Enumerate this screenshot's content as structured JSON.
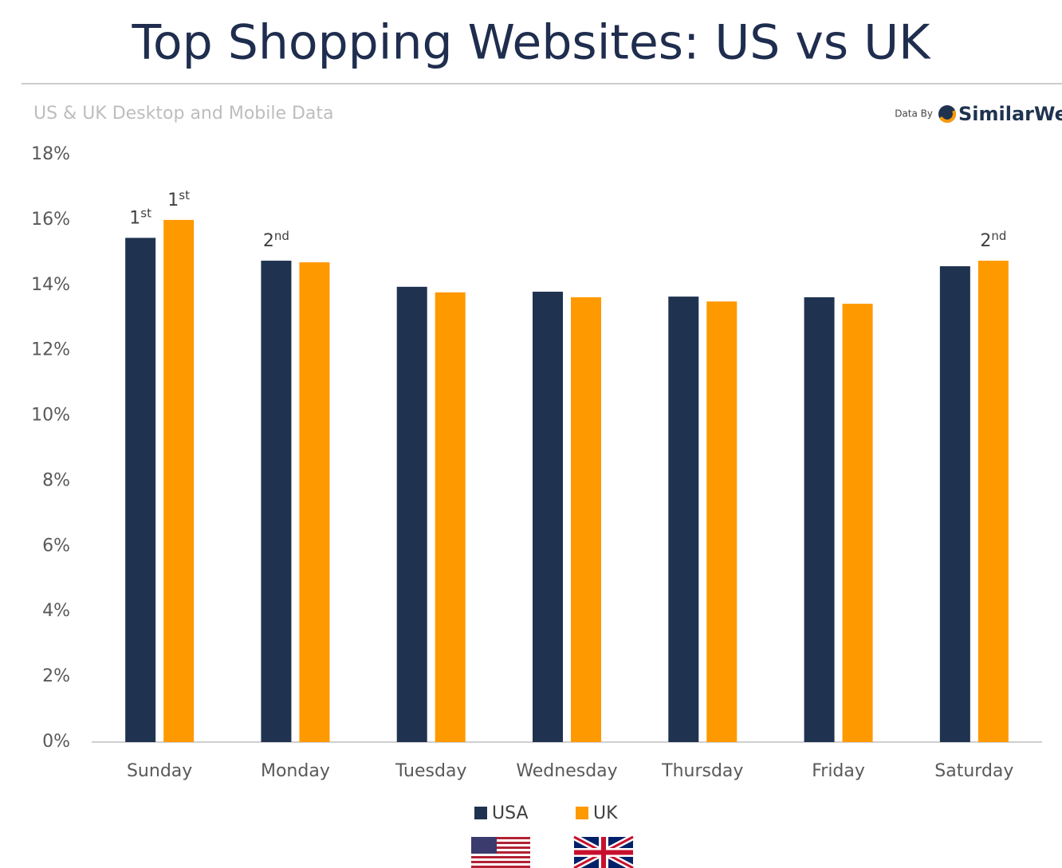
{
  "chart_data": {
    "type": "bar",
    "title": "Top Shopping Websites: US vs UK",
    "subtitle": "US & UK Desktop and Mobile Data",
    "source": "Data By",
    "brand": "SimilarWeb",
    "categories": [
      "Sunday",
      "Monday",
      "Tuesday",
      "Wednesday",
      "Thursday",
      "Friday",
      "Saturday"
    ],
    "series": [
      {
        "name": "USA",
        "color": "#1f3350",
        "values": [
          15.45,
          14.75,
          13.95,
          13.8,
          13.65,
          13.63,
          14.58
        ],
        "rank_labels": [
          "1st",
          "2nd",
          null,
          null,
          null,
          null,
          null
        ]
      },
      {
        "name": "UK",
        "color": "#ff9900",
        "values": [
          16.0,
          14.7,
          13.78,
          13.63,
          13.5,
          13.43,
          14.75
        ],
        "rank_labels": [
          "1st",
          null,
          null,
          null,
          null,
          null,
          "2nd"
        ]
      }
    ],
    "ylim": [
      0,
      18
    ],
    "yticks": [
      {
        "value": 0,
        "label": "0%"
      },
      {
        "value": 2,
        "label": "2%"
      },
      {
        "value": 4,
        "label": "4%"
      },
      {
        "value": 6,
        "label": "6%"
      },
      {
        "value": 8,
        "label": "8%"
      },
      {
        "value": 10,
        "label": "10%"
      },
      {
        "value": 12,
        "label": "12%"
      },
      {
        "value": 14,
        "label": "14%"
      },
      {
        "value": 16,
        "label": "16%"
      },
      {
        "value": 18,
        "label": "18%"
      }
    ],
    "grid": false
  }
}
